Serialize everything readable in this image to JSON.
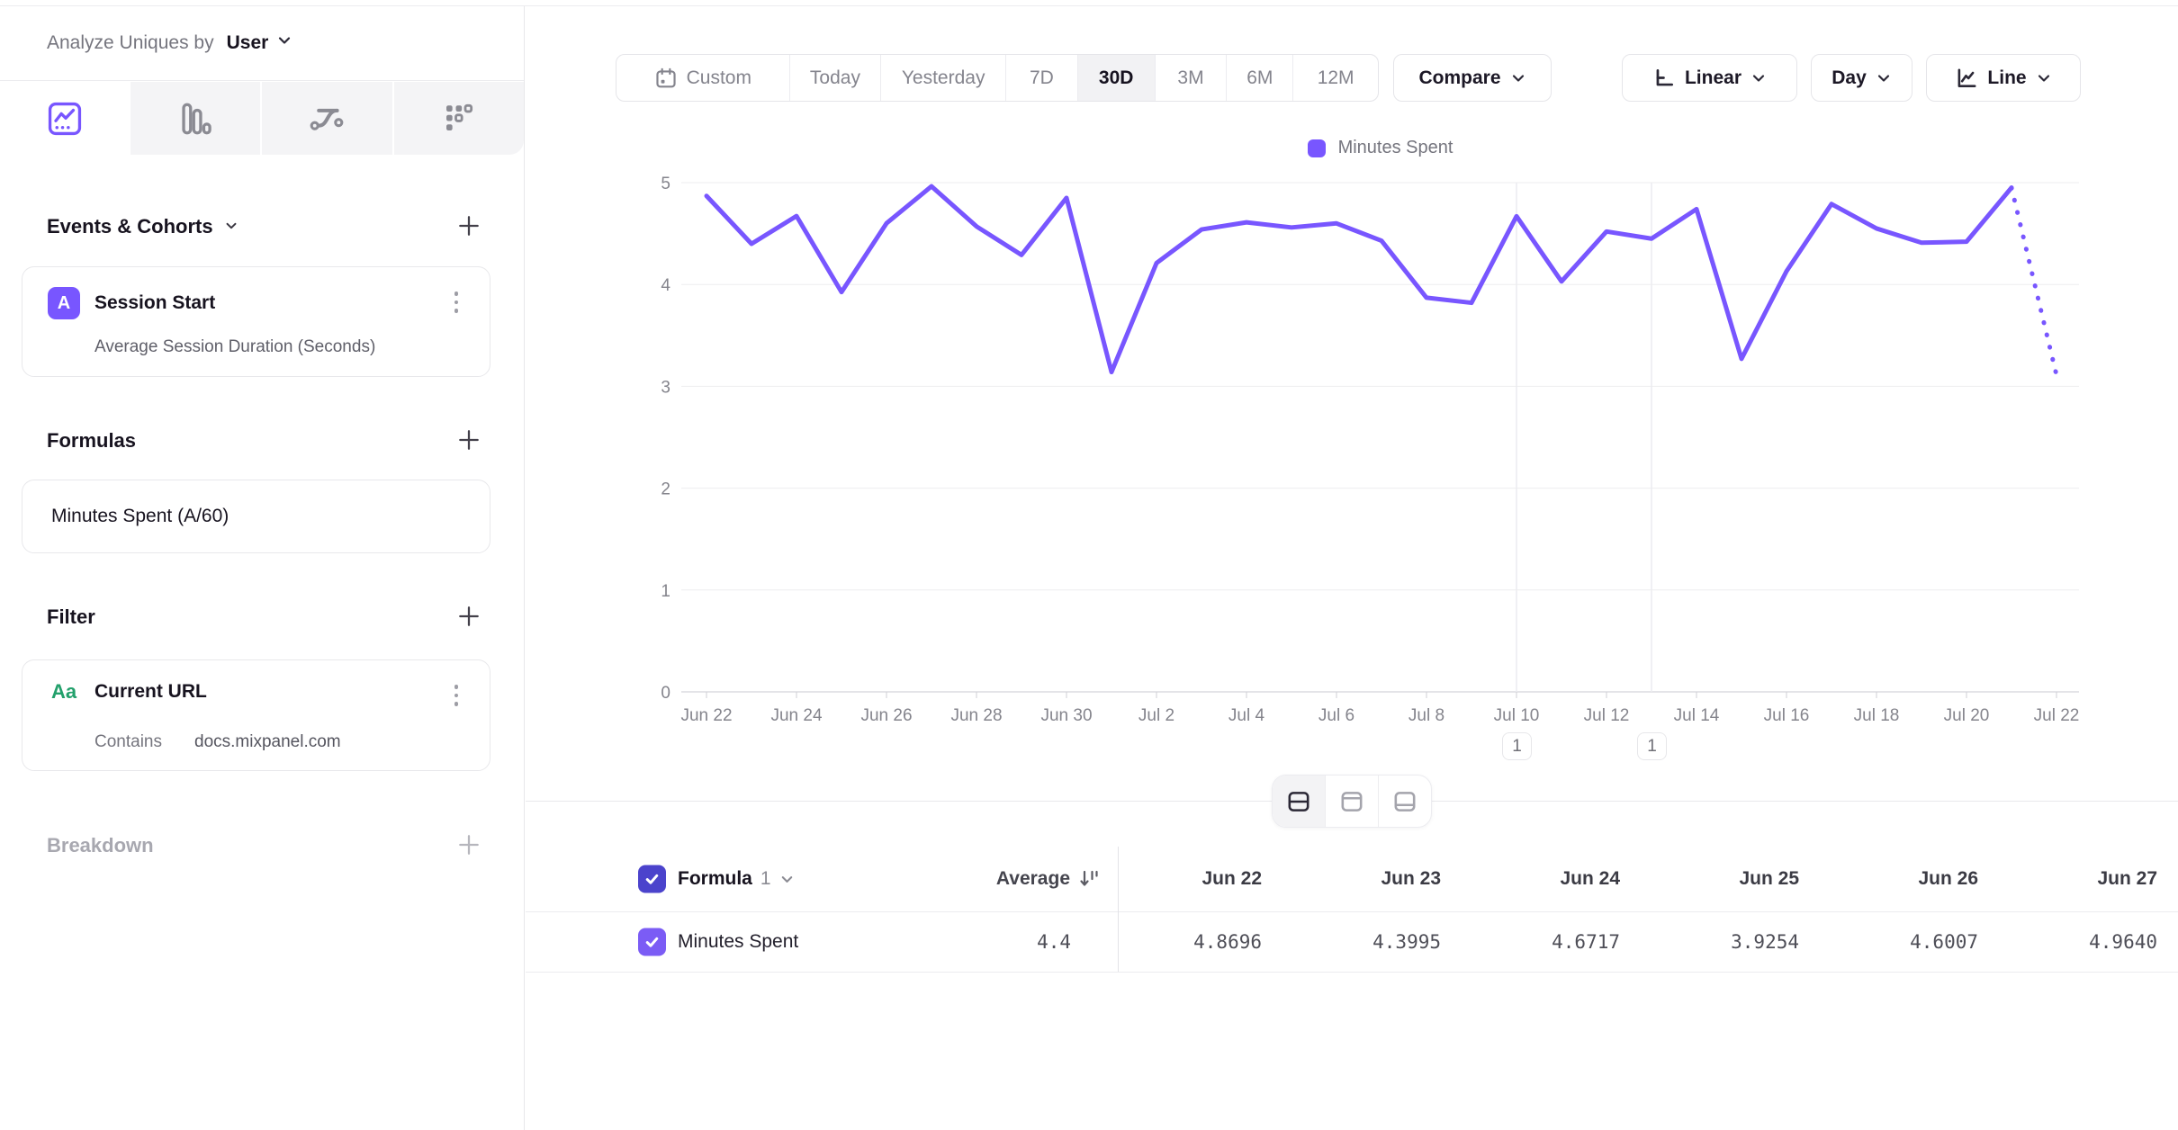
{
  "colors": {
    "accent": "#7856ff",
    "string_property_green": "#22a06b",
    "checkbox_header": "#4b43cc",
    "checkbox_row": "#7b5cf5"
  },
  "sidebar": {
    "analyze_label": "Analyze Uniques by",
    "analyze_value": "User",
    "viz_tabs": [
      {
        "id": "insights",
        "active": true
      },
      {
        "id": "bar",
        "active": false
      },
      {
        "id": "flow",
        "active": false
      },
      {
        "id": "retention",
        "active": false
      }
    ],
    "events_section": {
      "title": "Events & Cohorts"
    },
    "event_card": {
      "badge": "A",
      "title": "Session Start",
      "subtitle": "Average Session Duration (Seconds)"
    },
    "formulas_section": {
      "title": "Formulas"
    },
    "formula_card": {
      "title": "Minutes Spent (A/60)"
    },
    "filter_section": {
      "title": "Filter"
    },
    "filter_card": {
      "type_icon": "Aa",
      "title": "Current URL",
      "operator": "Contains",
      "value": "docs.mixpanel.com"
    },
    "breakdown_section": {
      "title": "Breakdown"
    }
  },
  "toolbar": {
    "date_ranges": [
      "Custom",
      "Today",
      "Yesterday",
      "7D",
      "30D",
      "3M",
      "6M",
      "12M"
    ],
    "active_range": "30D",
    "compare_label": "Compare",
    "scale_label": "Linear",
    "interval_label": "Day",
    "chart_type_label": "Line"
  },
  "chart_data": {
    "type": "line",
    "x": [
      "Jun 22",
      "Jun 23",
      "Jun 24",
      "Jun 25",
      "Jun 26",
      "Jun 27",
      "Jun 28",
      "Jun 29",
      "Jun 30",
      "Jul 1",
      "Jul 2",
      "Jul 3",
      "Jul 4",
      "Jul 5",
      "Jul 6",
      "Jul 7",
      "Jul 8",
      "Jul 9",
      "Jul 10",
      "Jul 11",
      "Jul 12",
      "Jul 13",
      "Jul 14",
      "Jul 15",
      "Jul 16",
      "Jul 17",
      "Jul 18",
      "Jul 19",
      "Jul 20",
      "Jul 21",
      "Jul 22"
    ],
    "x_tick_labels": [
      "Jun 22",
      "Jun 24",
      "Jun 26",
      "Jun 28",
      "Jun 30",
      "Jul 2",
      "Jul 4",
      "Jul 6",
      "Jul 8",
      "Jul 10",
      "Jul 12",
      "Jul 14",
      "Jul 16",
      "Jul 18",
      "Jul 20",
      "Jul 22"
    ],
    "series": [
      {
        "name": "Minutes Spent",
        "color": "#7856ff",
        "values": [
          4.8696,
          4.3995,
          4.6717,
          3.9254,
          4.6007,
          4.964,
          4.57,
          4.29,
          4.85,
          3.14,
          4.21,
          4.54,
          4.61,
          4.56,
          4.6,
          4.43,
          3.87,
          3.82,
          4.67,
          4.03,
          4.52,
          4.45,
          4.74,
          3.27,
          4.13,
          4.79,
          4.55,
          4.41,
          4.42,
          4.95,
          3.11
        ]
      }
    ],
    "last_segment_dotted": true,
    "ylim": [
      0,
      5
    ],
    "yticks": [
      0,
      1,
      2,
      3,
      4,
      5
    ],
    "grid": "horizontal",
    "legend_position": "top",
    "annotations": [
      {
        "label": "1",
        "x": "Jul 10"
      },
      {
        "label": "1",
        "x": "Jul 13"
      }
    ]
  },
  "table": {
    "name_label": "Formula",
    "name_index": "1",
    "average_label": "Average",
    "columns": [
      "Jun 22",
      "Jun 23",
      "Jun 24",
      "Jun 25",
      "Jun 26",
      "Jun 27"
    ],
    "rows": [
      {
        "name": "Minutes Spent",
        "average": "4.4",
        "values": [
          "4.8696",
          "4.3995",
          "4.6717",
          "3.9254",
          "4.6007",
          "4.9640"
        ]
      }
    ]
  }
}
